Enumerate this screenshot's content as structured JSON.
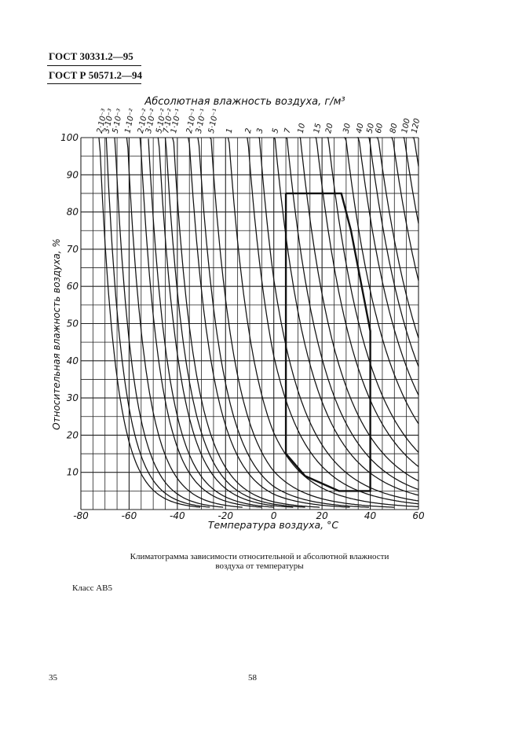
{
  "header": {
    "standard_1": "ГОСТ 30331.2—95",
    "standard_2": "ГОСТ Р 50571.2—94"
  },
  "chart_data": {
    "type": "line",
    "title": "Абсолютная влажность воздуха, г/м³",
    "xlabel": "Температура воздуха, °С",
    "ylabel": "Относительная влажность воздуха, %",
    "xlim": [
      -80,
      60
    ],
    "ylim": [
      0,
      100
    ],
    "x_ticks": [
      {
        "value": -80,
        "label": "-80"
      },
      {
        "value": -60,
        "label": "-60"
      },
      {
        "value": -40,
        "label": "-40"
      },
      {
        "value": -20,
        "label": "-20"
      },
      {
        "value": 0,
        "label": "0"
      },
      {
        "value": 20,
        "label": "20"
      },
      {
        "value": 40,
        "label": "40"
      },
      {
        "value": 60,
        "label": "60"
      }
    ],
    "y_ticks": [
      {
        "value": 10,
        "label": "10"
      },
      {
        "value": 20,
        "label": "20"
      },
      {
        "value": 30,
        "label": "30"
      },
      {
        "value": 40,
        "label": "40"
      },
      {
        "value": 50,
        "label": "50"
      },
      {
        "value": 60,
        "label": "60"
      },
      {
        "value": 70,
        "label": "70"
      },
      {
        "value": 80,
        "label": "80"
      },
      {
        "value": 90,
        "label": "90"
      },
      {
        "value": 100,
        "label": "100"
      }
    ],
    "grid": true,
    "absolute_humidity_isolines": [
      {
        "label": "2·10⁻³",
        "value": 0.002
      },
      {
        "label": "3·10⁻³",
        "value": 0.003
      },
      {
        "label": "5·10⁻³",
        "value": 0.005
      },
      {
        "label": "1·10⁻²",
        "value": 0.01
      },
      {
        "label": "2·10⁻²",
        "value": 0.02
      },
      {
        "label": "3·10⁻²",
        "value": 0.03
      },
      {
        "label": "5·10⁻²",
        "value": 0.05
      },
      {
        "label": "7·10⁻²",
        "value": 0.07
      },
      {
        "label": "1·10⁻¹",
        "value": 0.1
      },
      {
        "label": "2·10⁻¹",
        "value": 0.2
      },
      {
        "label": "3·10⁻¹",
        "value": 0.3
      },
      {
        "label": "5·10⁻¹",
        "value": 0.5
      },
      {
        "label": "1",
        "value": 1
      },
      {
        "label": "2",
        "value": 2
      },
      {
        "label": "3",
        "value": 3
      },
      {
        "label": "5",
        "value": 5
      },
      {
        "label": "7",
        "value": 7
      },
      {
        "label": "10",
        "value": 10
      },
      {
        "label": "15",
        "value": 15
      },
      {
        "label": "20",
        "value": 20
      },
      {
        "label": "30",
        "value": 30
      },
      {
        "label": "40",
        "value": 40
      },
      {
        "label": "50",
        "value": 50
      },
      {
        "label": "60",
        "value": 60
      },
      {
        "label": "80",
        "value": 80
      },
      {
        "label": "100",
        "value": 100
      },
      {
        "label": "120",
        "value": 120
      }
    ],
    "climatogram_boundary": [
      {
        "t": 5,
        "rh": 85
      },
      {
        "t": 28,
        "rh": 85
      },
      {
        "t": 32,
        "rh": 75
      },
      {
        "t": 40,
        "rh": 48
      },
      {
        "t": 40,
        "rh": 5
      },
      {
        "t": 27,
        "rh": 5
      },
      {
        "t": 13,
        "rh": 9
      },
      {
        "t": 5,
        "rh": 15
      },
      {
        "t": 5,
        "rh": 85
      }
    ]
  },
  "caption": {
    "line1": "Климатограмма зависимости относительной и абсолютной влажности",
    "line2": "воздуха от температуры"
  },
  "class_label": "Класс АВ5",
  "footer": {
    "sheet_number": "35",
    "page_number": "58"
  }
}
